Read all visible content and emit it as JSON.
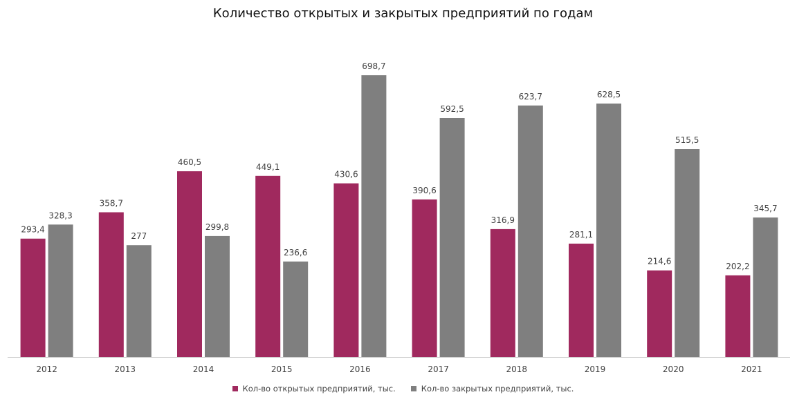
{
  "chart_data": {
    "type": "bar",
    "title": "Количество открытых и закрытых предприятий по годам",
    "categories": [
      "2012",
      "2013",
      "2014",
      "2015",
      "2016",
      "2017",
      "2018",
      "2019",
      "2020",
      "2021"
    ],
    "series": [
      {
        "name": "Кол-во открытых предприятий, тыс.",
        "color": "#A0295E",
        "values": [
          293.4,
          358.7,
          460.5,
          449.1,
          430.6,
          390.6,
          316.9,
          281.1,
          214.6,
          202.2
        ],
        "labels": [
          "293,4",
          "358,7",
          "460,5",
          "449,1",
          "430,6",
          "390,6",
          "316,9",
          "281,1",
          "214,6",
          "202,2"
        ]
      },
      {
        "name": "Кол-во закрытых предприятий, тыс.",
        "color": "#7F7F7F",
        "values": [
          328.3,
          277,
          299.8,
          236.6,
          698.7,
          592.5,
          623.7,
          628.5,
          515.5,
          345.7
        ],
        "labels": [
          "328,3",
          "277",
          "299,8",
          "236,6",
          "698,7",
          "592,5",
          "623,7",
          "628,5",
          "515,5",
          "345,7"
        ]
      }
    ],
    "xlabel": "",
    "ylabel": "",
    "ylim": [
      0,
      698.7
    ],
    "grid": false,
    "legend_position": "bottom"
  }
}
